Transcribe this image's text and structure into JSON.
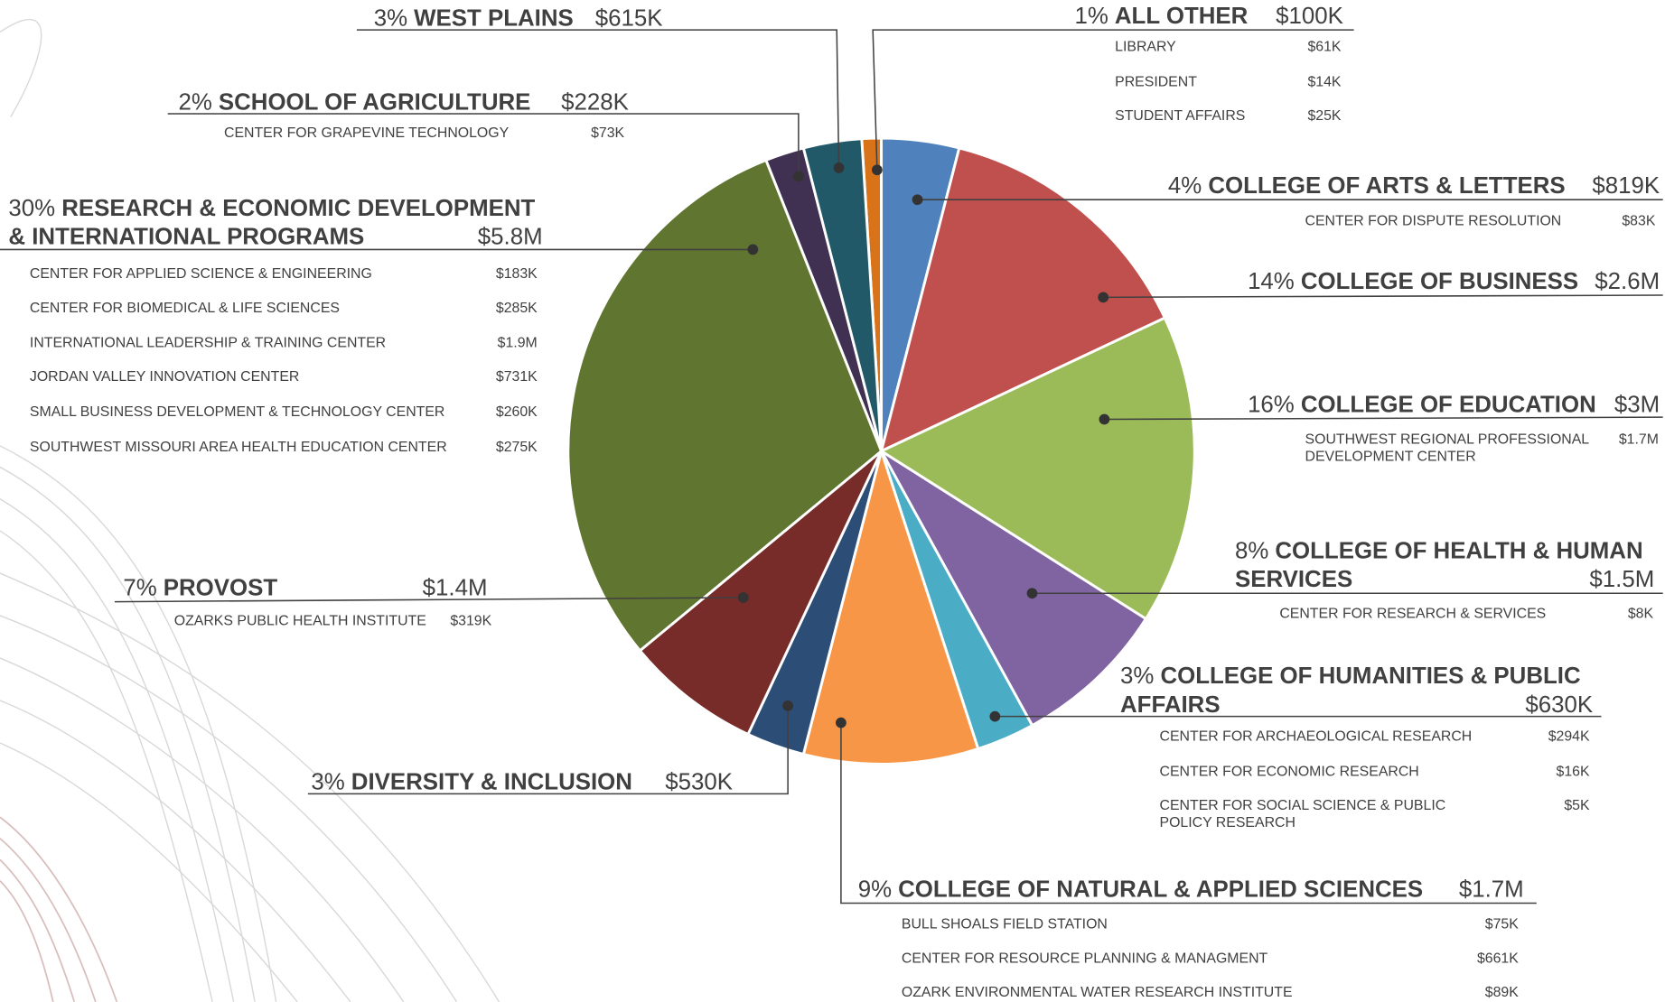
{
  "chart_data": {
    "type": "pie",
    "values": [
      1,
      4,
      14,
      16,
      8,
      3,
      9,
      3,
      7,
      30,
      2,
      3
    ],
    "value_labels": [
      "1%",
      "4%",
      "14%",
      "16%",
      "8%",
      "3%",
      "9%",
      "3%",
      "7%",
      "30%",
      "2%",
      "3%"
    ],
    "colors": [
      "#d8731a",
      "#4f81bd",
      "#c0504d",
      "#9bbb59",
      "#8064a2",
      "#4bacc6",
      "#f79646",
      "#2c4d75",
      "#772c2a",
      "#5f7530",
      "#403152",
      "#215968"
    ],
    "slices": [
      {
        "name": [
          "ALL OTHER"
        ],
        "amount": "$100K",
        "units": [
          {
            "name": [
              "LIBRARY"
            ],
            "amount": "$61K"
          },
          {
            "name": [
              "PRESIDENT"
            ],
            "amount": "$14K"
          },
          {
            "name": [
              "STUDENT AFFAIRS"
            ],
            "amount": "$25K"
          }
        ]
      },
      {
        "name": [
          "COLLEGE OF ARTS & LETTERS"
        ],
        "amount": "$819K",
        "units": [
          {
            "name": [
              "CENTER FOR DISPUTE RESOLUTION"
            ],
            "amount": "$83K"
          }
        ]
      },
      {
        "name": [
          "COLLEGE OF BUSINESS"
        ],
        "amount": "$2.6M",
        "units": []
      },
      {
        "name": [
          "COLLEGE OF EDUCATION"
        ],
        "amount": "$3M",
        "units": [
          {
            "name": [
              "SOUTHWEST REGIONAL PROFESSIONAL",
              "DEVELOPMENT CENTER"
            ],
            "amount": "$1.7M"
          }
        ]
      },
      {
        "name": [
          "COLLEGE OF HEALTH & HUMAN",
          "SERVICES"
        ],
        "amount": "$1.5M",
        "units": [
          {
            "name": [
              "CENTER FOR RESEARCH & SERVICES"
            ],
            "amount": "$8K"
          }
        ]
      },
      {
        "name": [
          "COLLEGE OF HUMANITIES & PUBLIC",
          "AFFAIRS"
        ],
        "amount": "$630K",
        "units": [
          {
            "name": [
              "CENTER FOR ARCHAEOLOGICAL RESEARCH"
            ],
            "amount": "$294K"
          },
          {
            "name": [
              "CENTER FOR ECONOMIC RESEARCH"
            ],
            "amount": "$16K"
          },
          {
            "name": [
              "CENTER FOR SOCIAL SCIENCE & PUBLIC",
              "POLICY RESEARCH"
            ],
            "amount": "$5K"
          }
        ]
      },
      {
        "name": [
          "COLLEGE OF NATURAL & APPLIED SCIENCES"
        ],
        "amount": "$1.7M",
        "units": [
          {
            "name": [
              "BULL SHOALS FIELD STATION"
            ],
            "amount": "$75K"
          },
          {
            "name": [
              "CENTER FOR RESOURCE PLANNING & MANAGMENT"
            ],
            "amount": "$661K"
          },
          {
            "name": [
              "OZARK ENVIRONMENTAL WATER RESEARCH INSTITUTE"
            ],
            "amount": "$89K"
          }
        ]
      },
      {
        "name": [
          "DIVERSITY & INCLUSION"
        ],
        "amount": "$530K",
        "units": []
      },
      {
        "name": [
          "PROVOST"
        ],
        "amount": "$1.4M",
        "units": [
          {
            "name": [
              "OZARKS PUBLIC HEALTH INSTITUTE"
            ],
            "amount": "$319K"
          }
        ]
      },
      {
        "name": [
          "RESEARCH & ECONOMIC DEVELOPMENT",
          "& INTERNATIONAL PROGRAMS"
        ],
        "amount": "$5.8M",
        "units": [
          {
            "name": [
              "CENTER FOR APPLIED SCIENCE & ENGINEERING"
            ],
            "amount": "$183K"
          },
          {
            "name": [
              "CENTER FOR BIOMEDICAL & LIFE SCIENCES"
            ],
            "amount": "$285K"
          },
          {
            "name": [
              "INTERNATIONAL LEADERSHIP & TRAINING CENTER"
            ],
            "amount": "$1.9M"
          },
          {
            "name": [
              "JORDAN VALLEY INNOVATION CENTER"
            ],
            "amount": "$731K"
          },
          {
            "name": [
              "SMALL BUSINESS DEVELOPMENT & TECHNOLOGY CENTER"
            ],
            "amount": "$260K"
          },
          {
            "name": [
              "SOUTHWEST MISSOURI AREA HEALTH EDUCATION CENTER"
            ],
            "amount": "$275K"
          }
        ]
      },
      {
        "name": [
          "SCHOOL OF AGRICULTURE"
        ],
        "amount": "$228K",
        "units": [
          {
            "name": [
              "CENTER FOR GRAPEVINE TECHNOLOGY"
            ],
            "amount": "$73K"
          }
        ]
      },
      {
        "name": [
          "WEST PLAINS"
        ],
        "amount": "$615K",
        "units": []
      }
    ]
  }
}
